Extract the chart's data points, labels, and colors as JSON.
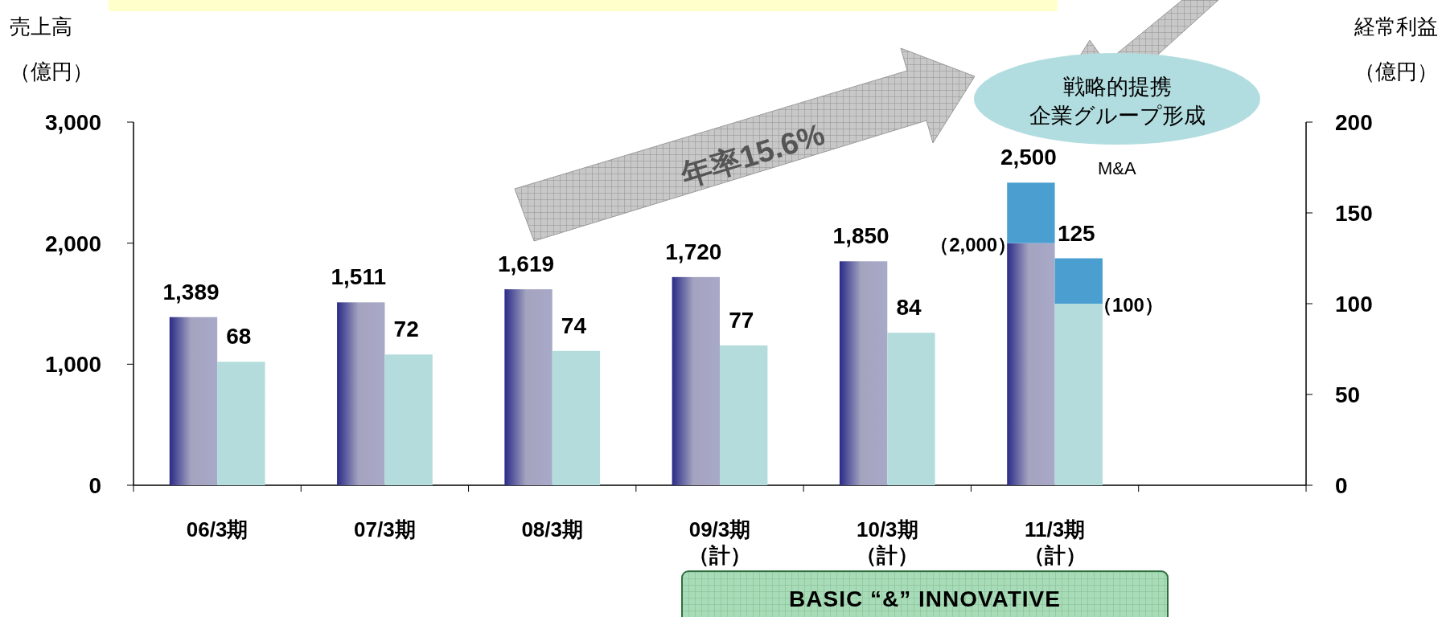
{
  "chart_data": {
    "type": "bar",
    "stacked": true,
    "categories": [
      "06/3期",
      "07/3期",
      "08/3期",
      "09/3期（計）",
      "10/3期（計）",
      "11/3期（計）",
      null
    ],
    "series": [
      {
        "color": "#a4a4c0",
        "values": [
          1389,
          1511,
          1619,
          1720,
          1850,
          2000,
          null
        ],
        "value_labels": [
          "1,389",
          "1,511",
          "1,619",
          "1,720",
          "1,850",
          null,
          null
        ]
      },
      {
        "color": "#4a9fd0",
        "values": [
          null,
          null,
          null,
          null,
          null,
          500,
          null
        ]
      },
      {
        "axis": "y2",
        "color": "#b4dcdc",
        "values": [
          68,
          72,
          74,
          77,
          84,
          100,
          null
        ],
        "value_labels": [
          "68",
          "72",
          "74",
          "77",
          "84",
          null,
          null
        ]
      },
      {
        "axis": "y2",
        "color": "#4a9fd0",
        "values": [
          null,
          null,
          null,
          null,
          null,
          25,
          null
        ]
      }
    ],
    "ylabel": "売上高（億円）",
    "y2label": "経常利益（億円）",
    "ylim": [
      0,
      3000
    ],
    "yticks": [
      {
        "value": 0,
        "label": "0"
      },
      {
        "value": 1000,
        "label": "1,000"
      },
      {
        "value": 2000,
        "label": "2,000"
      },
      {
        "value": 3000,
        "label": "3,000"
      }
    ],
    "y2lim": [
      0,
      200
    ],
    "y2ticks": [
      0,
      50,
      100,
      150,
      200
    ],
    "grid": false,
    "totals": [
      null,
      null,
      null,
      null,
      null,
      "2,500",
      null
    ],
    "annotations": [
      "年率15.6%",
      "戦略的提携",
      "企業グループ形成",
      "M&A",
      "BASIC “&” INNOVATIVE",
      "125",
      "（2,000）",
      "（100）"
    ]
  }
}
